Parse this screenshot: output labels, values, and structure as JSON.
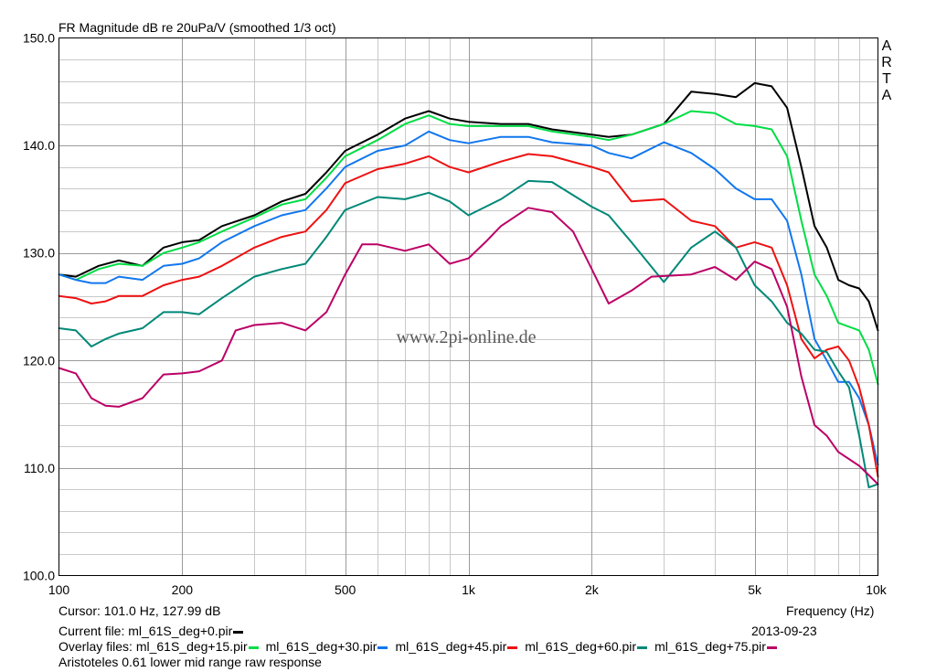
{
  "header": {
    "title": "FR Magnitude dB re 20uPa/V (smoothed 1/3 oct)"
  },
  "brand": [
    "A",
    "R",
    "T",
    "A"
  ],
  "watermark": "www.2pi-online.de",
  "footer": {
    "cursor": "Cursor: 101.0 Hz, 127.99 dB",
    "xlabel": "Frequency (Hz)",
    "current_label": "Current file: ml_61S_deg+0.pir",
    "date": "2013-09-23",
    "overlay_prefix": "Overlay files:",
    "overlay_files": [
      "ml_61S_deg+15.pir",
      "ml_61S_deg+30.pir",
      "ml_61S_deg+45.pir",
      "ml_61S_deg+60.pir",
      "ml_61S_deg+75.pir"
    ],
    "description": "Aristoteles 0.61 lower mid range raw response"
  },
  "chart_data": {
    "type": "line",
    "title": "FR Magnitude dB re 20uPa/V (smoothed 1/3 oct)",
    "xlabel": "Frequency (Hz)",
    "ylabel": "",
    "x_scale": "log",
    "xlim": [
      100,
      10000
    ],
    "ylim": [
      100,
      150
    ],
    "grid": true,
    "x_ticks": [
      {
        "v": 100,
        "label": "100"
      },
      {
        "v": 200,
        "label": "200"
      },
      {
        "v": 500,
        "label": "500"
      },
      {
        "v": 1000,
        "label": "1k"
      },
      {
        "v": 2000,
        "label": "2k"
      },
      {
        "v": 5000,
        "label": "5k"
      },
      {
        "v": 10000,
        "label": "10k"
      }
    ],
    "y_ticks": [
      {
        "v": 100,
        "label": "100.0"
      },
      {
        "v": 110,
        "label": "110.0"
      },
      {
        "v": 120,
        "label": "120.0"
      },
      {
        "v": 130,
        "label": "130.0"
      },
      {
        "v": 140,
        "label": "140.0"
      },
      {
        "v": 150,
        "label": "150.0"
      }
    ],
    "series": [
      {
        "name": "ml_61S_deg+0.pir",
        "color": "#000000",
        "points": [
          [
            100,
            128
          ],
          [
            110,
            127.8
          ],
          [
            125,
            128.8
          ],
          [
            140,
            129.3
          ],
          [
            160,
            128.8
          ],
          [
            180,
            130.5
          ],
          [
            200,
            131
          ],
          [
            220,
            131.2
          ],
          [
            250,
            132.5
          ],
          [
            300,
            133.5
          ],
          [
            350,
            134.8
          ],
          [
            400,
            135.5
          ],
          [
            450,
            137.5
          ],
          [
            500,
            139.5
          ],
          [
            600,
            141
          ],
          [
            700,
            142.5
          ],
          [
            800,
            143.2
          ],
          [
            900,
            142.5
          ],
          [
            1000,
            142.2
          ],
          [
            1200,
            142
          ],
          [
            1400,
            142
          ],
          [
            1600,
            141.5
          ],
          [
            2000,
            141
          ],
          [
            2200,
            140.8
          ],
          [
            2500,
            141
          ],
          [
            3000,
            142
          ],
          [
            3500,
            145
          ],
          [
            4000,
            144.8
          ],
          [
            4500,
            144.5
          ],
          [
            5000,
            145.8
          ],
          [
            5500,
            145.5
          ],
          [
            6000,
            143.5
          ],
          [
            6500,
            138
          ],
          [
            7000,
            132.5
          ],
          [
            7500,
            130.5
          ],
          [
            8000,
            127.5
          ],
          [
            8500,
            127
          ],
          [
            9000,
            126.7
          ],
          [
            9500,
            125.5
          ],
          [
            10000,
            122.8
          ]
        ]
      },
      {
        "name": "ml_61S_deg+15.pir",
        "color": "#00dd44",
        "points": [
          [
            100,
            128
          ],
          [
            110,
            127.5
          ],
          [
            125,
            128.5
          ],
          [
            140,
            129
          ],
          [
            160,
            128.8
          ],
          [
            180,
            130
          ],
          [
            200,
            130.5
          ],
          [
            220,
            131
          ],
          [
            250,
            132
          ],
          [
            300,
            133.3
          ],
          [
            350,
            134.5
          ],
          [
            400,
            135
          ],
          [
            450,
            137
          ],
          [
            500,
            139
          ],
          [
            600,
            140.5
          ],
          [
            700,
            142
          ],
          [
            800,
            142.8
          ],
          [
            900,
            142
          ],
          [
            1000,
            141.8
          ],
          [
            1200,
            141.8
          ],
          [
            1400,
            141.8
          ],
          [
            1600,
            141.3
          ],
          [
            2000,
            140.8
          ],
          [
            2200,
            140.5
          ],
          [
            2500,
            141
          ],
          [
            3000,
            142
          ],
          [
            3500,
            143.2
          ],
          [
            4000,
            143
          ],
          [
            4500,
            142
          ],
          [
            5000,
            141.8
          ],
          [
            5500,
            141.5
          ],
          [
            6000,
            139
          ],
          [
            6500,
            133
          ],
          [
            7000,
            128
          ],
          [
            7500,
            126
          ],
          [
            8000,
            123.5
          ],
          [
            9000,
            122.8
          ],
          [
            9500,
            121
          ],
          [
            10000,
            117.8
          ]
        ]
      },
      {
        "name": "ml_61S_deg+30.pir",
        "color": "#1177ee",
        "points": [
          [
            100,
            128
          ],
          [
            110,
            127.5
          ],
          [
            120,
            127.2
          ],
          [
            130,
            127.2
          ],
          [
            140,
            127.8
          ],
          [
            160,
            127.5
          ],
          [
            180,
            128.8
          ],
          [
            200,
            129
          ],
          [
            220,
            129.5
          ],
          [
            250,
            131
          ],
          [
            300,
            132.5
          ],
          [
            350,
            133.5
          ],
          [
            400,
            134
          ],
          [
            450,
            136
          ],
          [
            500,
            138
          ],
          [
            600,
            139.5
          ],
          [
            700,
            140
          ],
          [
            800,
            141.3
          ],
          [
            900,
            140.5
          ],
          [
            1000,
            140.2
          ],
          [
            1200,
            140.8
          ],
          [
            1400,
            140.8
          ],
          [
            1600,
            140.3
          ],
          [
            2000,
            140
          ],
          [
            2200,
            139.3
          ],
          [
            2500,
            138.8
          ],
          [
            3000,
            140.3
          ],
          [
            3500,
            139.3
          ],
          [
            4000,
            137.8
          ],
          [
            4500,
            136
          ],
          [
            5000,
            135
          ],
          [
            5500,
            135
          ],
          [
            6000,
            133
          ],
          [
            6500,
            128
          ],
          [
            7000,
            122
          ],
          [
            7500,
            120
          ],
          [
            8000,
            118
          ],
          [
            8500,
            118
          ],
          [
            9000,
            116.5
          ],
          [
            9500,
            114
          ],
          [
            10000,
            110.3
          ]
        ]
      },
      {
        "name": "ml_61S_deg+45.pir",
        "color": "#ee1111",
        "points": [
          [
            100,
            126
          ],
          [
            110,
            125.8
          ],
          [
            120,
            125.3
          ],
          [
            130,
            125.5
          ],
          [
            140,
            126
          ],
          [
            160,
            126
          ],
          [
            180,
            127
          ],
          [
            200,
            127.5
          ],
          [
            220,
            127.8
          ],
          [
            250,
            128.8
          ],
          [
            300,
            130.5
          ],
          [
            350,
            131.5
          ],
          [
            400,
            132
          ],
          [
            450,
            134
          ],
          [
            500,
            136.5
          ],
          [
            600,
            137.8
          ],
          [
            700,
            138.3
          ],
          [
            800,
            139
          ],
          [
            900,
            138
          ],
          [
            1000,
            137.5
          ],
          [
            1200,
            138.5
          ],
          [
            1400,
            139.2
          ],
          [
            1600,
            139
          ],
          [
            2000,
            138
          ],
          [
            2200,
            137.5
          ],
          [
            2500,
            134.8
          ],
          [
            3000,
            135
          ],
          [
            3500,
            133
          ],
          [
            4000,
            132.5
          ],
          [
            4500,
            130.5
          ],
          [
            5000,
            131
          ],
          [
            5500,
            130.5
          ],
          [
            6000,
            127
          ],
          [
            6500,
            122
          ],
          [
            7000,
            120.2
          ],
          [
            7500,
            121
          ],
          [
            8000,
            121.3
          ],
          [
            8500,
            120
          ],
          [
            9000,
            117.5
          ],
          [
            9500,
            114
          ],
          [
            10000,
            109.2
          ]
        ]
      },
      {
        "name": "ml_61S_deg+60.pir",
        "color": "#008877",
        "points": [
          [
            100,
            123
          ],
          [
            110,
            122.8
          ],
          [
            120,
            121.3
          ],
          [
            130,
            122
          ],
          [
            140,
            122.5
          ],
          [
            160,
            123
          ],
          [
            180,
            124.5
          ],
          [
            200,
            124.5
          ],
          [
            220,
            124.3
          ],
          [
            250,
            125.8
          ],
          [
            300,
            127.8
          ],
          [
            350,
            128.5
          ],
          [
            400,
            129
          ],
          [
            450,
            131.5
          ],
          [
            500,
            134
          ],
          [
            600,
            135.2
          ],
          [
            700,
            135
          ],
          [
            800,
            135.6
          ],
          [
            900,
            134.8
          ],
          [
            1000,
            133.5
          ],
          [
            1200,
            135
          ],
          [
            1400,
            136.7
          ],
          [
            1600,
            136.6
          ],
          [
            2000,
            134.3
          ],
          [
            2200,
            133.5
          ],
          [
            2500,
            131
          ],
          [
            3000,
            127.3
          ],
          [
            3500,
            130.5
          ],
          [
            4000,
            132
          ],
          [
            4500,
            130.5
          ],
          [
            5000,
            127
          ],
          [
            5500,
            125.5
          ],
          [
            6000,
            123.5
          ],
          [
            6500,
            122.5
          ],
          [
            7000,
            121
          ],
          [
            7500,
            120.8
          ],
          [
            8000,
            119
          ],
          [
            8500,
            117.5
          ],
          [
            9000,
            113
          ],
          [
            9500,
            108.2
          ],
          [
            10000,
            108.5
          ]
        ]
      },
      {
        "name": "ml_61S_deg+75.pir",
        "color": "#bb0066",
        "points": [
          [
            100,
            119.3
          ],
          [
            110,
            118.8
          ],
          [
            120,
            116.5
          ],
          [
            130,
            115.8
          ],
          [
            140,
            115.7
          ],
          [
            160,
            116.5
          ],
          [
            180,
            118.7
          ],
          [
            200,
            118.8
          ],
          [
            220,
            119
          ],
          [
            250,
            120
          ],
          [
            270,
            122.8
          ],
          [
            300,
            123.3
          ],
          [
            350,
            123.5
          ],
          [
            400,
            122.8
          ],
          [
            450,
            124.5
          ],
          [
            500,
            128
          ],
          [
            550,
            130.8
          ],
          [
            600,
            130.8
          ],
          [
            700,
            130.2
          ],
          [
            800,
            130.8
          ],
          [
            900,
            129
          ],
          [
            1000,
            129.5
          ],
          [
            1100,
            131
          ],
          [
            1200,
            132.5
          ],
          [
            1400,
            134.2
          ],
          [
            1600,
            133.8
          ],
          [
            1800,
            132
          ],
          [
            2000,
            128.5
          ],
          [
            2200,
            125.3
          ],
          [
            2500,
            126.5
          ],
          [
            2800,
            127.8
          ],
          [
            3500,
            128
          ],
          [
            4000,
            128.7
          ],
          [
            4500,
            127.5
          ],
          [
            5000,
            129.2
          ],
          [
            5500,
            128.5
          ],
          [
            6000,
            125
          ],
          [
            6500,
            118.5
          ],
          [
            7000,
            114
          ],
          [
            7500,
            113
          ],
          [
            8000,
            111.5
          ],
          [
            9000,
            110.2
          ],
          [
            10000,
            108.5
          ]
        ]
      }
    ]
  }
}
